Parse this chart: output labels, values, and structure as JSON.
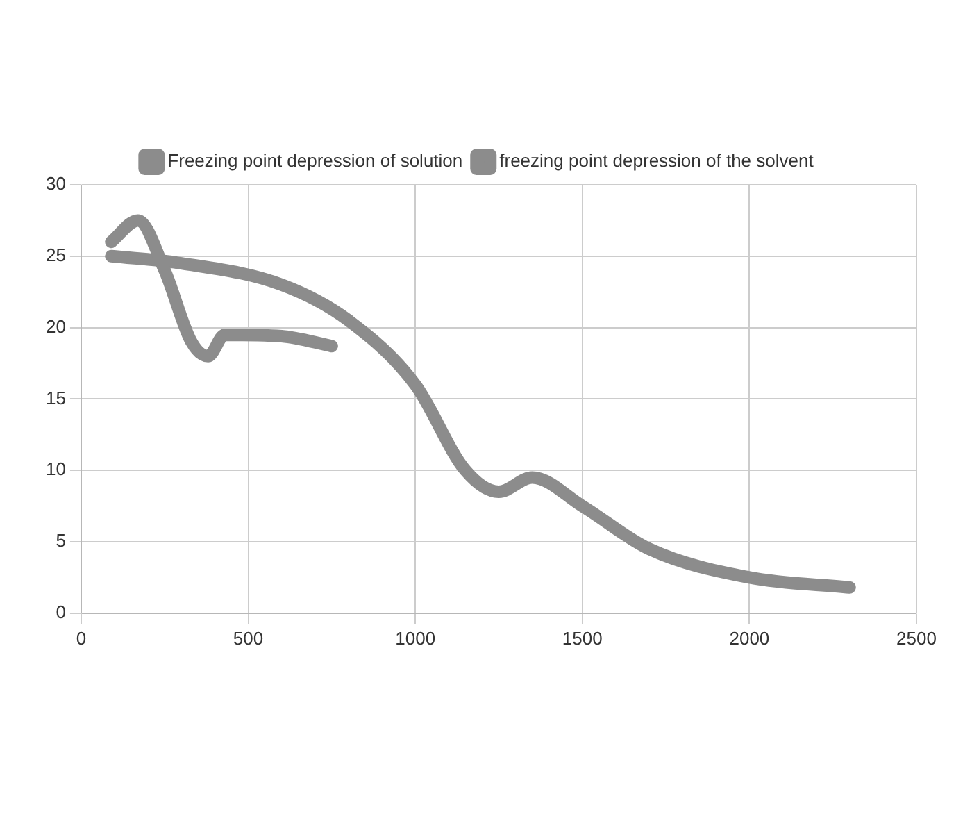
{
  "chart_data": {
    "type": "line",
    "legend": "top",
    "grid": true,
    "xlim": [
      0,
      2500
    ],
    "xticks": [
      0,
      500,
      1000,
      1500,
      2000,
      2500
    ],
    "ylim": [
      0,
      30
    ],
    "yticks": [
      0,
      5,
      10,
      15,
      20,
      25,
      30
    ],
    "series": [
      {
        "name": "Freezing point depression of solution",
        "color": "#8c8c8c",
        "x": [
          90,
          170,
          250,
          330,
          380,
          430,
          600,
          750
        ],
        "values": [
          26,
          27.5,
          24,
          19,
          18,
          19.5,
          19.4,
          18.7
        ]
      },
      {
        "name": "freezing point depression of the solvent",
        "color": "#8c8c8c",
        "x": [
          90,
          300,
          600,
          800,
          1000,
          1150,
          1250,
          1350,
          1500,
          1700,
          2000,
          2300
        ],
        "values": [
          25,
          24.5,
          23,
          20.5,
          16,
          10,
          8.5,
          9.5,
          7.5,
          4.5,
          2.5,
          1.8
        ]
      }
    ]
  }
}
